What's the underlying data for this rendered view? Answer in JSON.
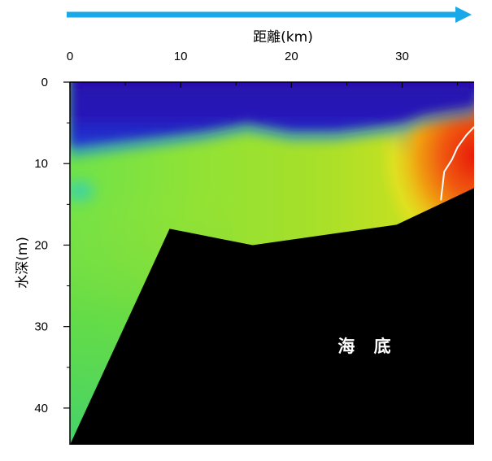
{
  "chart_data": {
    "type": "heatmap",
    "xlabel": "距離(km)",
    "ylabel": "水深(m)",
    "xlim": [
      0,
      36.5
    ],
    "ylim": [
      0,
      44.5
    ],
    "y_inverted": true,
    "x_axis_position": "top",
    "x_ticks": [
      "0",
      "10",
      "20",
      "30"
    ],
    "y_ticks": [
      "0",
      "10",
      "20",
      "30",
      "40"
    ],
    "x_tick_values": [
      0,
      10,
      20,
      30
    ],
    "y_tick_values": [
      0,
      10,
      20,
      30,
      40
    ],
    "x_minor_tick_values": [
      5,
      15,
      25,
      35
    ],
    "y_minor_tick_values": [
      5,
      15,
      25,
      35
    ],
    "colormap": [
      "#2a0ea8",
      "#1f3cd8",
      "#1e8ae0",
      "#2ed0c0",
      "#39e07a",
      "#7ce43a",
      "#b8e020",
      "#f0e020",
      "#f08a10",
      "#e81808"
    ],
    "seabed_label": "海 底",
    "seabed_profile": {
      "x": [
        0,
        9,
        16.5,
        29.5,
        36.5
      ],
      "depth": [
        44.5,
        18,
        20,
        17.5,
        13
      ]
    },
    "surface_layer_bottom": {
      "x": [
        0,
        3,
        6,
        9,
        12,
        16,
        20,
        24,
        27,
        30,
        32,
        34,
        36.5
      ],
      "depth": [
        8,
        7.5,
        7,
        6.5,
        6,
        5,
        6,
        6,
        5.5,
        5,
        4,
        3.5,
        3
      ]
    },
    "hot_core_contour": {
      "x": [
        36.5,
        35.8,
        35,
        34.5,
        33.8,
        33.5
      ],
      "depth": [
        5.5,
        6.5,
        8,
        9.5,
        11,
        14.5
      ]
    },
    "flow_arrow_color": "#1aa9e8"
  }
}
